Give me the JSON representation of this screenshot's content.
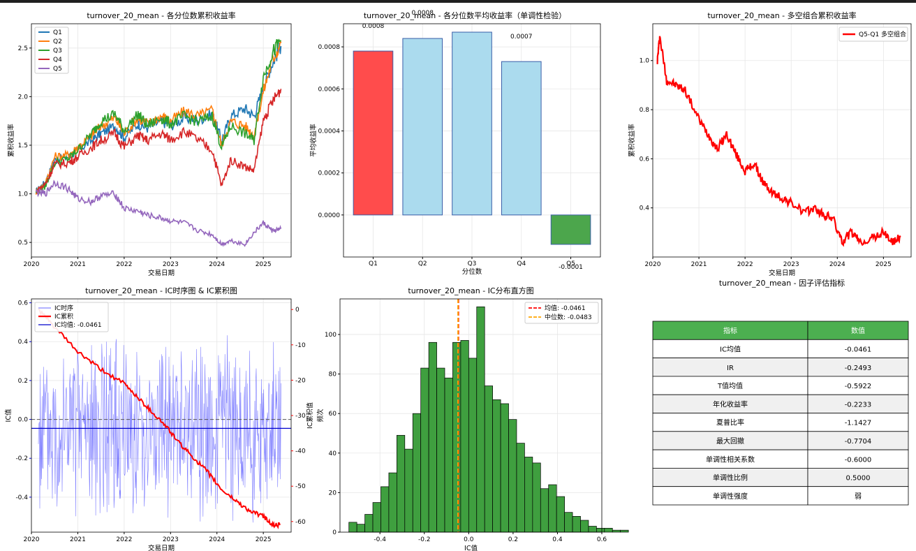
{
  "chart_data": [
    {
      "type": "line",
      "title": "turnover_20_mean - 各分位数累积收益率",
      "xlabel": "交易日期",
      "ylabel": "累积收益率",
      "x_ticks": [
        "2020",
        "2021",
        "2022",
        "2023",
        "2024",
        "2025"
      ],
      "xlim": [
        2020.0,
        2025.6
      ],
      "ylim": [
        0.35,
        2.75
      ],
      "y_ticks": [
        "0.5",
        "1.0",
        "1.5",
        "2.0",
        "2.5"
      ],
      "grid": true,
      "legend": "top-left",
      "series": [
        {
          "name": "Q1",
          "color": "#1f77b4",
          "points": [
            [
              2020.1,
              1.02
            ],
            [
              2020.3,
              1.12
            ],
            [
              2020.5,
              1.35
            ],
            [
              2020.8,
              1.38
            ],
            [
              2021.0,
              1.45
            ],
            [
              2021.3,
              1.55
            ],
            [
              2021.5,
              1.62
            ],
            [
              2021.8,
              1.7
            ],
            [
              2022.0,
              1.58
            ],
            [
              2022.3,
              1.72
            ],
            [
              2022.5,
              1.68
            ],
            [
              2022.8,
              1.75
            ],
            [
              2023.0,
              1.7
            ],
            [
              2023.3,
              1.78
            ],
            [
              2023.6,
              1.76
            ],
            [
              2023.9,
              1.82
            ],
            [
              2024.1,
              1.55
            ],
            [
              2024.3,
              1.8
            ],
            [
              2024.6,
              1.88
            ],
            [
              2024.8,
              1.8
            ],
            [
              2025.0,
              2.1
            ],
            [
              2025.2,
              2.35
            ],
            [
              2025.38,
              2.52
            ]
          ]
        },
        {
          "name": "Q2",
          "color": "#ff7f0e",
          "points": [
            [
              2020.1,
              1.02
            ],
            [
              2020.3,
              1.1
            ],
            [
              2020.5,
              1.38
            ],
            [
              2020.8,
              1.4
            ],
            [
              2021.0,
              1.48
            ],
            [
              2021.3,
              1.6
            ],
            [
              2021.5,
              1.7
            ],
            [
              2021.8,
              1.78
            ],
            [
              2022.0,
              1.62
            ],
            [
              2022.3,
              1.78
            ],
            [
              2022.5,
              1.72
            ],
            [
              2022.8,
              1.8
            ],
            [
              2023.0,
              1.75
            ],
            [
              2023.3,
              1.85
            ],
            [
              2023.6,
              1.8
            ],
            [
              2023.9,
              1.86
            ],
            [
              2024.1,
              1.5
            ],
            [
              2024.3,
              1.75
            ],
            [
              2024.6,
              1.7
            ],
            [
              2024.8,
              1.6
            ],
            [
              2025.0,
              2.05
            ],
            [
              2025.2,
              2.38
            ],
            [
              2025.38,
              2.55
            ]
          ]
        },
        {
          "name": "Q3",
          "color": "#2ca02c",
          "points": [
            [
              2020.1,
              1.02
            ],
            [
              2020.3,
              1.08
            ],
            [
              2020.5,
              1.32
            ],
            [
              2020.8,
              1.36
            ],
            [
              2021.0,
              1.45
            ],
            [
              2021.3,
              1.62
            ],
            [
              2021.5,
              1.75
            ],
            [
              2021.8,
              1.82
            ],
            [
              2022.0,
              1.65
            ],
            [
              2022.3,
              1.82
            ],
            [
              2022.5,
              1.7
            ],
            [
              2022.8,
              1.78
            ],
            [
              2023.0,
              1.72
            ],
            [
              2023.3,
              1.8
            ],
            [
              2023.6,
              1.74
            ],
            [
              2023.9,
              1.8
            ],
            [
              2024.1,
              1.48
            ],
            [
              2024.3,
              1.7
            ],
            [
              2024.6,
              1.62
            ],
            [
              2024.8,
              1.55
            ],
            [
              2025.0,
              2.2
            ],
            [
              2025.2,
              2.45
            ],
            [
              2025.38,
              2.58
            ]
          ]
        },
        {
          "name": "Q4",
          "color": "#d62728",
          "points": [
            [
              2020.1,
              1.02
            ],
            [
              2020.3,
              1.1
            ],
            [
              2020.5,
              1.3
            ],
            [
              2020.8,
              1.32
            ],
            [
              2021.0,
              1.38
            ],
            [
              2021.3,
              1.48
            ],
            [
              2021.5,
              1.55
            ],
            [
              2021.8,
              1.62
            ],
            [
              2022.0,
              1.48
            ],
            [
              2022.3,
              1.6
            ],
            [
              2022.5,
              1.55
            ],
            [
              2022.8,
              1.62
            ],
            [
              2023.0,
              1.56
            ],
            [
              2023.3,
              1.64
            ],
            [
              2023.6,
              1.55
            ],
            [
              2023.9,
              1.45
            ],
            [
              2024.1,
              1.08
            ],
            [
              2024.3,
              1.35
            ],
            [
              2024.6,
              1.28
            ],
            [
              2024.8,
              1.24
            ],
            [
              2025.0,
              1.75
            ],
            [
              2025.2,
              1.95
            ],
            [
              2025.38,
              2.08
            ]
          ]
        },
        {
          "name": "Q5",
          "color": "#9467bd",
          "points": [
            [
              2020.1,
              1.02
            ],
            [
              2020.3,
              1.0
            ],
            [
              2020.5,
              1.12
            ],
            [
              2020.8,
              1.05
            ],
            [
              2021.0,
              0.95
            ],
            [
              2021.3,
              0.92
            ],
            [
              2021.5,
              0.98
            ],
            [
              2021.8,
              1.0
            ],
            [
              2022.0,
              0.85
            ],
            [
              2022.3,
              0.82
            ],
            [
              2022.5,
              0.78
            ],
            [
              2022.8,
              0.75
            ],
            [
              2023.0,
              0.72
            ],
            [
              2023.3,
              0.7
            ],
            [
              2023.6,
              0.62
            ],
            [
              2023.9,
              0.58
            ],
            [
              2024.1,
              0.48
            ],
            [
              2024.3,
              0.52
            ],
            [
              2024.6,
              0.48
            ],
            [
              2024.8,
              0.6
            ],
            [
              2025.0,
              0.7
            ],
            [
              2025.2,
              0.62
            ],
            [
              2025.38,
              0.64
            ]
          ]
        }
      ]
    },
    {
      "type": "bar",
      "title": "turnover_20_mean - 各分位数平均收益率（单调性检验）",
      "xlabel": "分位数",
      "ylabel": "平均收益率",
      "categories": [
        "Q1",
        "Q2",
        "Q3",
        "Q4",
        "Q5"
      ],
      "values": [
        0.00078,
        0.00084,
        0.00087,
        0.00073,
        -0.00014
      ],
      "data_labels": [
        "0.0008",
        "0.0008",
        "0.0009",
        "0.0007",
        "-0.0001"
      ],
      "colors": [
        "#ff4c4c",
        "#abdbee",
        "#abdbee",
        "#abdbee",
        "#4ca64c"
      ],
      "ylim": [
        -0.0002,
        0.00091
      ],
      "y_ticks": [
        "0.0000",
        "0.0002",
        "0.0004",
        "0.0006",
        "0.0008"
      ],
      "grid": true
    },
    {
      "type": "line",
      "title": "turnover_20_mean - 多空组合累积收益率",
      "xlabel": "交易日期",
      "ylabel": "累积收益率",
      "x_ticks": [
        "2020",
        "2021",
        "2022",
        "2023",
        "2024",
        "2025"
      ],
      "xlim": [
        2020.0,
        2025.6
      ],
      "ylim": [
        0.2,
        1.15
      ],
      "y_ticks": [
        "0.4",
        "0.6",
        "0.8",
        "1.0"
      ],
      "grid": true,
      "legend": "top-right",
      "series": [
        {
          "name": "Q5-Q1 多空组合",
          "color": "#ff0000",
          "points": [
            [
              2020.1,
              1.0
            ],
            [
              2020.15,
              1.1
            ],
            [
              2020.3,
              0.92
            ],
            [
              2020.5,
              0.9
            ],
            [
              2020.7,
              0.88
            ],
            [
              2021.0,
              0.76
            ],
            [
              2021.2,
              0.7
            ],
            [
              2021.4,
              0.64
            ],
            [
              2021.6,
              0.7
            ],
            [
              2021.8,
              0.62
            ],
            [
              2022.0,
              0.55
            ],
            [
              2022.2,
              0.58
            ],
            [
              2022.4,
              0.5
            ],
            [
              2022.6,
              0.46
            ],
            [
              2022.8,
              0.44
            ],
            [
              2023.0,
              0.42
            ],
            [
              2023.3,
              0.38
            ],
            [
              2023.5,
              0.4
            ],
            [
              2023.7,
              0.37
            ],
            [
              2023.9,
              0.36
            ],
            [
              2024.1,
              0.26
            ],
            [
              2024.3,
              0.3
            ],
            [
              2024.5,
              0.26
            ],
            [
              2024.8,
              0.28
            ],
            [
              2025.0,
              0.3
            ],
            [
              2025.2,
              0.26
            ],
            [
              2025.38,
              0.28
            ]
          ]
        }
      ]
    },
    {
      "type": "line",
      "title": "turnover_20_mean - IC时序图 & IC累积图",
      "xlabel": "交易日期",
      "ylabel": "IC值",
      "y2label": "IC累积值",
      "x_ticks": [
        "2020",
        "2021",
        "2022",
        "2023",
        "2024",
        "2025"
      ],
      "xlim": [
        2020.0,
        2025.6
      ],
      "ylim": [
        -0.58,
        0.62
      ],
      "y_ticks": [
        "-0.4",
        "-0.2",
        "0.0",
        "0.2",
        "0.4",
        "0.6"
      ],
      "y2lim": [
        -63,
        3
      ],
      "y2_ticks": [
        "0",
        "-10",
        "-20",
        "-30",
        "-40",
        "-50",
        "-60"
      ],
      "grid": true,
      "legend": "top-left",
      "ic_mean": -0.0461,
      "series": [
        {
          "name": "IC时序",
          "color": "#6666ff",
          "start": 2020.15,
          "end": 2025.38,
          "amplitude": 0.48
        },
        {
          "name": "IC累积",
          "color": "#ff0000",
          "axis": "right",
          "points": [
            [
              2020.15,
              0
            ],
            [
              2020.5,
              -5
            ],
            [
              2021.0,
              -12
            ],
            [
              2021.5,
              -17
            ],
            [
              2022.0,
              -21
            ],
            [
              2022.3,
              -25
            ],
            [
              2022.6,
              -29
            ],
            [
              2022.9,
              -33
            ],
            [
              2023.2,
              -38
            ],
            [
              2023.5,
              -42
            ],
            [
              2023.8,
              -46
            ],
            [
              2024.1,
              -51
            ],
            [
              2024.4,
              -54
            ],
            [
              2024.7,
              -57
            ],
            [
              2025.0,
              -58.5
            ],
            [
              2025.2,
              -61
            ],
            [
              2025.38,
              -61
            ]
          ]
        },
        {
          "name": "IC均值: -0.0461",
          "color": "#0000cc"
        }
      ]
    },
    {
      "type": "bar",
      "title": "turnover_20_mean - IC分布直方图",
      "xlabel": "IC值",
      "ylabel": "频次",
      "bin_start": -0.54,
      "bin_width": 0.036,
      "counts": [
        5,
        4,
        9,
        15,
        23,
        30,
        49,
        42,
        60,
        83,
        96,
        83,
        78,
        96,
        97,
        88,
        114,
        74,
        67,
        65,
        57,
        45,
        38,
        35,
        22,
        24,
        18,
        10,
        8,
        6,
        3,
        2,
        2,
        1,
        1
      ],
      "xlim": [
        -0.58,
        0.6
      ],
      "ylim": [
        0,
        118
      ],
      "x_ticks": [
        "-0.4",
        "-0.2",
        "0.0",
        "0.2",
        "0.4",
        "0.6"
      ],
      "y_ticks": [
        "0",
        "20",
        "40",
        "60",
        "80",
        "100"
      ],
      "mean": -0.0461,
      "median": -0.0483,
      "legend_mean": "均值: -0.0461",
      "legend_median": "中位数: -0.0483",
      "grid": true,
      "legend": "top-right"
    },
    {
      "type": "table",
      "title": "turnover_20_mean - 因子评估指标",
      "columns": [
        "指标",
        "数值"
      ],
      "rows": [
        [
          "IC均值",
          "-0.0461"
        ],
        [
          "IR",
          "-0.2493"
        ],
        [
          "T值均值",
          "-0.5922"
        ],
        [
          "年化收益率",
          "-0.2233"
        ],
        [
          "夏普比率",
          "-1.1427"
        ],
        [
          "最大回撤",
          "-0.7704"
        ],
        [
          "单调性相关系数",
          "-0.6000"
        ],
        [
          "单调性比例",
          "0.5000"
        ],
        [
          "单调性强度",
          "弱"
        ]
      ],
      "header_color": "#4caf50",
      "stripe_color": "#f0f0f0"
    }
  ]
}
